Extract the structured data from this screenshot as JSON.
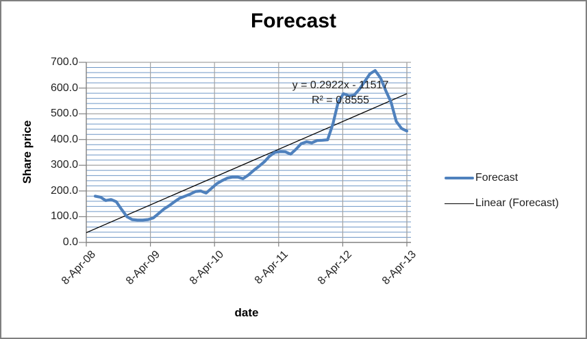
{
  "chart_data": {
    "type": "line",
    "title": "Forecast",
    "x_axis_title": "date",
    "y_axis_title": "Share price",
    "ylim": [
      0,
      700
    ],
    "y_major_step": 100,
    "y_minor_step": 20,
    "grid": "horizontal major+minor, vertical yearly",
    "legend_position": "right",
    "y_tick_labels": [
      "0.0",
      "100.0",
      "200.0",
      "300.0",
      "400.0",
      "500.0",
      "600.0",
      "700.0"
    ],
    "x_tick_labels": [
      "8-Apr-08",
      "8-Apr-09",
      "8-Apr-10",
      "8-Apr-11",
      "8-Apr-12",
      "8-Apr-13"
    ],
    "legend": [
      "Forecast",
      "Linear (Forecast)"
    ],
    "trendline": {
      "equation": "y = 0.2922x - 11517",
      "r2_label": "R² = 0.8555",
      "start_value": 38,
      "end_value": 578
    },
    "series": {
      "name": "Forecast",
      "x": [
        "May-08",
        "Jun-08",
        "Jul-08",
        "Aug-08",
        "Sep-08",
        "Oct-08",
        "Nov-08",
        "Dec-08",
        "Jan-09",
        "Feb-09",
        "Mar-09",
        "Apr-09",
        "May-09",
        "Jun-09",
        "Jul-09",
        "Aug-09",
        "Sep-09",
        "Oct-09",
        "Nov-09",
        "Dec-09",
        "Jan-10",
        "Feb-10",
        "Mar-10",
        "Apr-10",
        "May-10",
        "Jun-10",
        "Jul-10",
        "Aug-10",
        "Sep-10",
        "Oct-10",
        "Nov-10",
        "Dec-10",
        "Jan-11",
        "Feb-11",
        "Mar-11",
        "Apr-11",
        "May-11",
        "Jun-11",
        "Jul-11",
        "Aug-11",
        "Sep-11",
        "Oct-11",
        "Nov-11",
        "Dec-11",
        "Jan-12",
        "Feb-12",
        "Mar-12",
        "Apr-12",
        "May-12",
        "Jun-12",
        "Jul-12",
        "Aug-12",
        "Sep-12",
        "Oct-12",
        "Nov-12",
        "Dec-12",
        "Jan-13",
        "Feb-13",
        "Mar-13",
        "Apr-13"
      ],
      "values": [
        180,
        176,
        163,
        167,
        158,
        128,
        100,
        89,
        87,
        87,
        89,
        95,
        112,
        130,
        143,
        158,
        172,
        180,
        188,
        198,
        200,
        192,
        210,
        228,
        240,
        250,
        254,
        254,
        248,
        262,
        280,
        296,
        313,
        335,
        350,
        353,
        352,
        343,
        362,
        384,
        391,
        387,
        396,
        397,
        399,
        460,
        545,
        578,
        570,
        572,
        595,
        625,
        655,
        668,
        640,
        590,
        545,
        470,
        443,
        433
      ]
    },
    "colors": {
      "series_line": "#4F81BD",
      "trend_line": "#000000",
      "minor_grid": "#6D96C6",
      "major_grid": "#A3A3A3",
      "axis_line": "#808080"
    }
  }
}
